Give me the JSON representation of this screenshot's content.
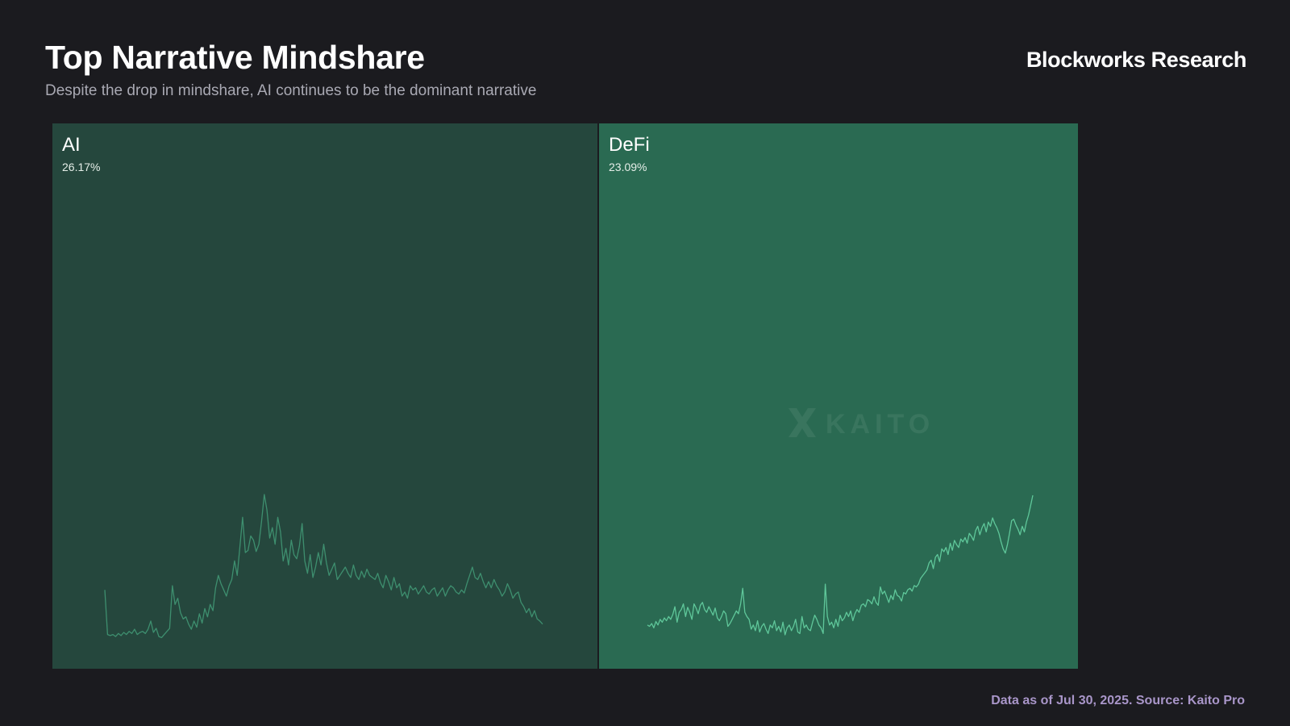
{
  "header": {
    "title": "Top Narrative Mindshare",
    "subtitle": "Despite the drop in mindshare, AI continues to be the dominant narrative",
    "brand": "Blockworks Research"
  },
  "footer": {
    "source": "Data as of Jul 30, 2025. Source: Kaito Pro"
  },
  "watermark": "KAITO",
  "colors": {
    "background": "#1b1b1f",
    "ai_tile": "#25473d",
    "defi_tile": "#2a6a52",
    "sparkline_ai": "#3e8f6f",
    "sparkline_defi": "#5fc79a",
    "source_text": "#a996c9"
  },
  "chart_data": {
    "type": "treemap",
    "title": "Top Narrative Mindshare",
    "subtitle": "Despite the drop in mindshare, AI continues to be the dominant narrative",
    "series": [
      {
        "name": "AI",
        "value_label": "26.17%",
        "value": 26.17,
        "trend": [
          48,
          5,
          4,
          5,
          3,
          6,
          4,
          7,
          5,
          8,
          6,
          10,
          5,
          7,
          8,
          6,
          10,
          18,
          7,
          11,
          3,
          2,
          5,
          8,
          11,
          52,
          34,
          40,
          26,
          20,
          22,
          15,
          10,
          18,
          12,
          25,
          16,
          30,
          22,
          34,
          28,
          50,
          62,
          54,
          48,
          42,
          52,
          58,
          76,
          62,
          90,
          118,
          84,
          86,
          100,
          96,
          85,
          92,
          114,
          140,
          125,
          98,
          108,
          92,
          118,
          104,
          76,
          88,
          72,
          96,
          82,
          78,
          90,
          112,
          76,
          64,
          82,
          60,
          70,
          84,
          72,
          92,
          74,
          62,
          68,
          74,
          58,
          62,
          66,
          70,
          64,
          60,
          72,
          62,
          58,
          66,
          60,
          68,
          62,
          60,
          58,
          64,
          55,
          50,
          62,
          56,
          48,
          60,
          50,
          54,
          42,
          46,
          40,
          52,
          48,
          50,
          44,
          48,
          52,
          46,
          44,
          48,
          50,
          42,
          46,
          50,
          42,
          48,
          52,
          50,
          46,
          44,
          48,
          45,
          54,
          62,
          70,
          60,
          58,
          64,
          56,
          50,
          56,
          50,
          58,
          52,
          48,
          42,
          46,
          54,
          48,
          40,
          44,
          46,
          36,
          32,
          26,
          30,
          22,
          28,
          20,
          18,
          15
        ]
      },
      {
        "name": "DeFi",
        "value_label": "23.09%",
        "value": 23.09,
        "trend": [
          30,
          28,
          32,
          26,
          35,
          30,
          38,
          34,
          40,
          36,
          42,
          38,
          45,
          56,
          34,
          48,
          52,
          60,
          42,
          55,
          48,
          38,
          60,
          54,
          46,
          58,
          62,
          52,
          48,
          56,
          50,
          44,
          54,
          40,
          36,
          42,
          50,
          46,
          28,
          32,
          38,
          44,
          50,
          46,
          60,
          82,
          48,
          42,
          38,
          24,
          30,
          22,
          36,
          20,
          28,
          32,
          24,
          18,
          30,
          26,
          36,
          22,
          28,
          20,
          34,
          16,
          26,
          30,
          22,
          28,
          38,
          20,
          18,
          42,
          26,
          30,
          24,
          22,
          34,
          44,
          38,
          30,
          26,
          18,
          88,
          42,
          30,
          34,
          26,
          38,
          28,
          44,
          36,
          40,
          48,
          42,
          50,
          36,
          46,
          52,
          48,
          58,
          60,
          56,
          66,
          64,
          60,
          70,
          62,
          58,
          84,
          74,
          78,
          70,
          62,
          72,
          66,
          80,
          72,
          70,
          64,
          76,
          74,
          80,
          82,
          78,
          86,
          84,
          88,
          96,
          100,
          104,
          108,
          118,
          122,
          110,
          126,
          130,
          120,
          138,
          134,
          140,
          130,
          146,
          136,
          150,
          144,
          140,
          152,
          148,
          154,
          146,
          160,
          156,
          150,
          164,
          170,
          158,
          168,
          174,
          162,
          176,
          170,
          182,
          174,
          168,
          160,
          148,
          138,
          132,
          144,
          160,
          178,
          180,
          172,
          166,
          158,
          170,
          162,
          176,
          186,
          200,
          214
        ]
      }
    ]
  }
}
